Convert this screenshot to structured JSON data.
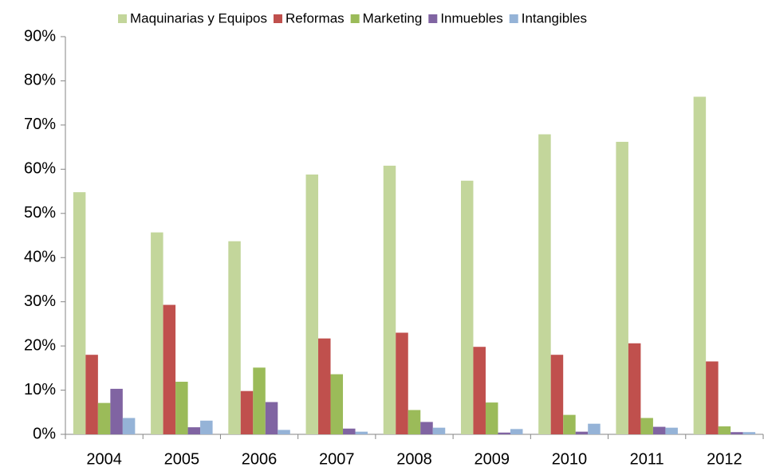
{
  "chart_data": {
    "type": "bar",
    "categories": [
      "2004",
      "2005",
      "2006",
      "2007",
      "2008",
      "2009",
      "2010",
      "2011",
      "2012"
    ],
    "series": [
      {
        "name": "Maquinarias y Equipos",
        "color": "#c3d69b",
        "values": [
          54.8,
          45.7,
          43.7,
          58.8,
          60.8,
          57.4,
          67.9,
          66.2,
          76.4
        ]
      },
      {
        "name": "Reformas",
        "color": "#c0504d",
        "values": [
          18.0,
          29.3,
          9.8,
          21.7,
          23.0,
          19.8,
          18.0,
          20.6,
          16.5
        ]
      },
      {
        "name": "Marketing",
        "color": "#9bbb59",
        "values": [
          7.1,
          11.9,
          15.1,
          13.6,
          5.5,
          7.2,
          4.4,
          3.7,
          1.8
        ]
      },
      {
        "name": "Inmuebles",
        "color": "#8064a2",
        "values": [
          10.3,
          1.6,
          7.3,
          1.3,
          2.8,
          0.4,
          0.6,
          1.7,
          0.5
        ]
      },
      {
        "name": "Intangibles",
        "color": "#95b3d7",
        "values": [
          3.7,
          3.1,
          1.0,
          0.6,
          1.5,
          1.2,
          2.4,
          1.5,
          0.5
        ]
      }
    ],
    "ylim": [
      0,
      90
    ],
    "yticks": [
      {
        "value": 0,
        "label": "0%"
      },
      {
        "value": 10,
        "label": "10%"
      },
      {
        "value": 20,
        "label": "20%"
      },
      {
        "value": 30,
        "label": "30%"
      },
      {
        "value": 40,
        "label": "40%"
      },
      {
        "value": 50,
        "label": "50%"
      },
      {
        "value": 60,
        "label": "60%"
      },
      {
        "value": 70,
        "label": "70%"
      },
      {
        "value": 80,
        "label": "80%"
      },
      {
        "value": 90,
        "label": "90%"
      }
    ],
    "legend": "top",
    "grid": false
  }
}
